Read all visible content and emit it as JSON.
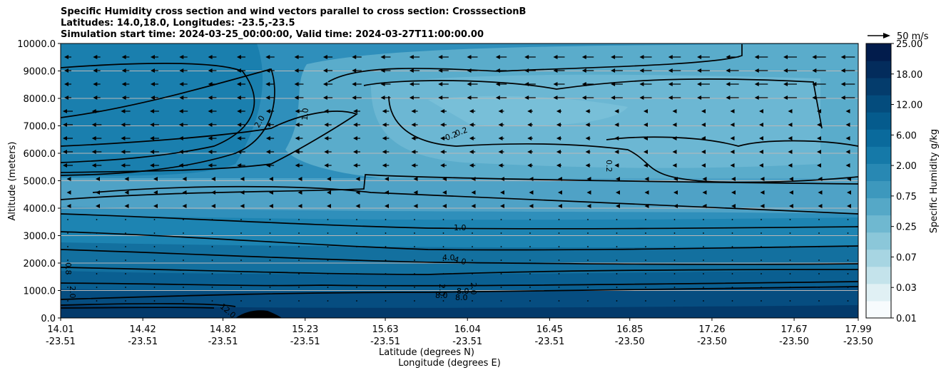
{
  "chart_data": {
    "type": "contour-cross-section",
    "title_lines": [
      "Specific Humidity cross section and wind vectors parallel to cross section: CrosssectionB",
      "Latitudes: 14.0,18.0, Longitudes: -23.5,-23.5",
      "Simulation start time: 2024-03-25_00:00:00, Valid time: 2024-03-27T11:00:00.00"
    ],
    "xlabel_lat": "Latitude (degrees N)",
    "xlabel_lon": "Longitude (degrees E)",
    "ylabel": "Altitude (meters)",
    "ylim": [
      0,
      10000
    ],
    "xticks": [
      {
        "lat": "14.01",
        "lon": "-23.51"
      },
      {
        "lat": "14.42",
        "lon": "-23.51"
      },
      {
        "lat": "14.82",
        "lon": "-23.51"
      },
      {
        "lat": "15.23",
        "lon": "-23.51"
      },
      {
        "lat": "15.63",
        "lon": "-23.51"
      },
      {
        "lat": "16.04",
        "lon": "-23.51"
      },
      {
        "lat": "16.45",
        "lon": "-23.51"
      },
      {
        "lat": "16.85",
        "lon": "-23.50"
      },
      {
        "lat": "17.26",
        "lon": "-23.50"
      },
      {
        "lat": "17.67",
        "lon": "-23.50"
      },
      {
        "lat": "17.99",
        "lon": "-23.50"
      }
    ],
    "yticks": [
      "0.0",
      "1000.0",
      "2000.0",
      "3000.0",
      "4000.0",
      "5000.0",
      "6000.0",
      "7000.0",
      "8000.0",
      "9000.0",
      "10000.0"
    ],
    "colorbar": {
      "label": "Specific Humidity g/kg",
      "ticks": [
        "0.01",
        "0.03",
        "0.07",
        "0.25",
        "0.75",
        "2.00",
        "6.00",
        "12.00",
        "18.00",
        "25.00"
      ],
      "colors": [
        "#f7fbfd",
        "#e0f0f4",
        "#c4e3eb",
        "#a7d5e2",
        "#8bc7d9",
        "#6fb8d0",
        "#55a8c7",
        "#3d98bd",
        "#2888b3",
        "#1579a8",
        "#0a6a9c",
        "#055b8d",
        "#044c7d",
        "#043c6c",
        "#032c5c",
        "#021c4c"
      ]
    },
    "contour_labels": [
      "1.0",
      "2.0",
      "0.2",
      "0.2",
      "0.2",
      "1.0",
      "4.0",
      "4.0",
      "2.0",
      "2.0",
      "8.0",
      "8.0",
      "8.0",
      "12.0",
      "0.8",
      "2.0"
    ],
    "quiver_key": "50 m/s",
    "wind_direction": "northerly (pointing to decreasing latitude) aloft, weak below 4000 m"
  }
}
